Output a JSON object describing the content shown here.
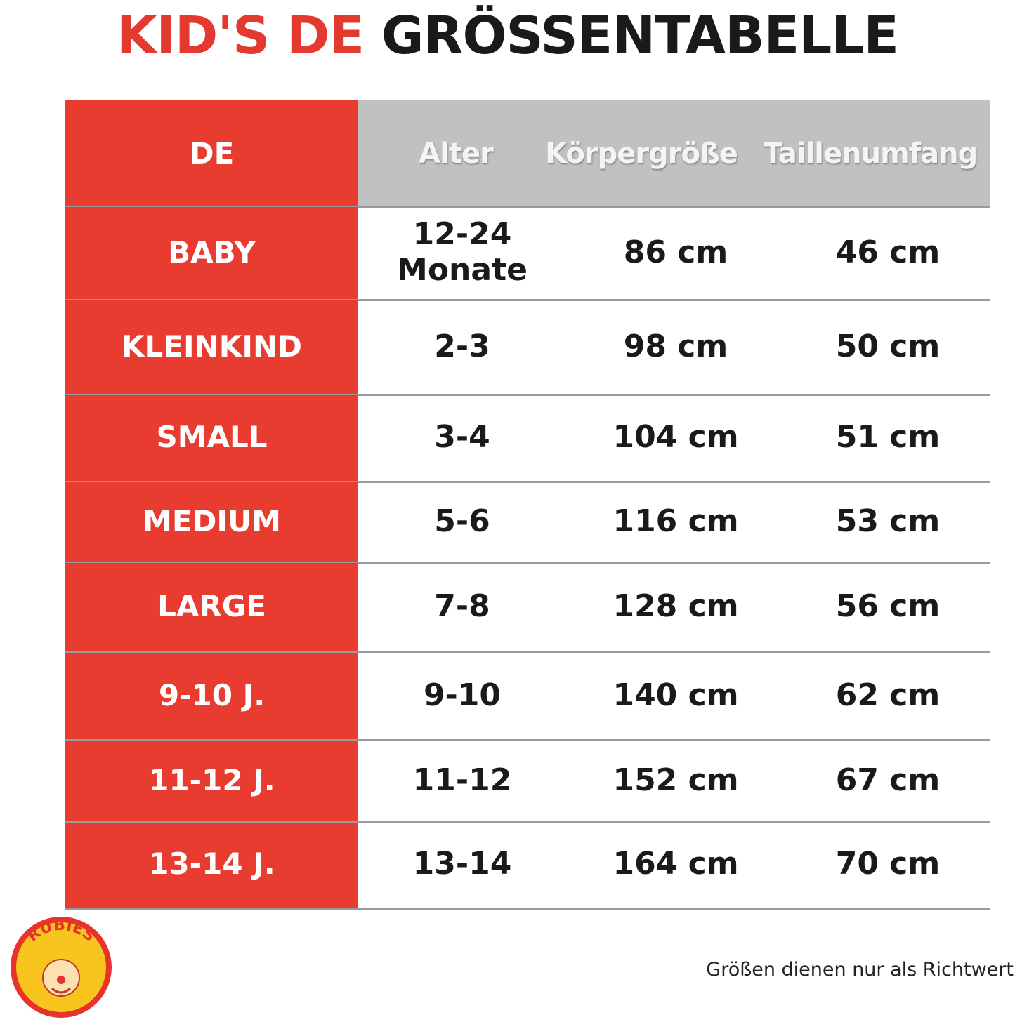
{
  "title": {
    "highlight": "KID'S DE",
    "main": "GRÖSSENTABELLE"
  },
  "table": {
    "header": [
      "DE",
      "Alter",
      "Körpergröße",
      "Taillenumfang"
    ],
    "rows": [
      [
        "BABY",
        "12-24 Monate",
        "86 cm",
        "46 cm"
      ],
      [
        "KLEINKIND",
        "2-3",
        "98 cm",
        "50 cm"
      ],
      [
        "SMALL",
        "3-4",
        "104 cm",
        "51 cm"
      ],
      [
        "MEDIUM",
        "5-6",
        "116 cm",
        "53 cm"
      ],
      [
        "LARGE",
        "7-8",
        "128 cm",
        "56 cm"
      ],
      [
        "9-10  J.",
        "9-10",
        "140 cm",
        "62 cm"
      ],
      [
        "11-12  J.",
        "11-12",
        "152 cm",
        "67 cm"
      ],
      [
        "13-14  J.",
        "13-14",
        "164 cm",
        "70 cm"
      ]
    ]
  },
  "logo": {
    "text": "RUBIES"
  },
  "footnote": "Größen dienen nur als Richtwert"
}
